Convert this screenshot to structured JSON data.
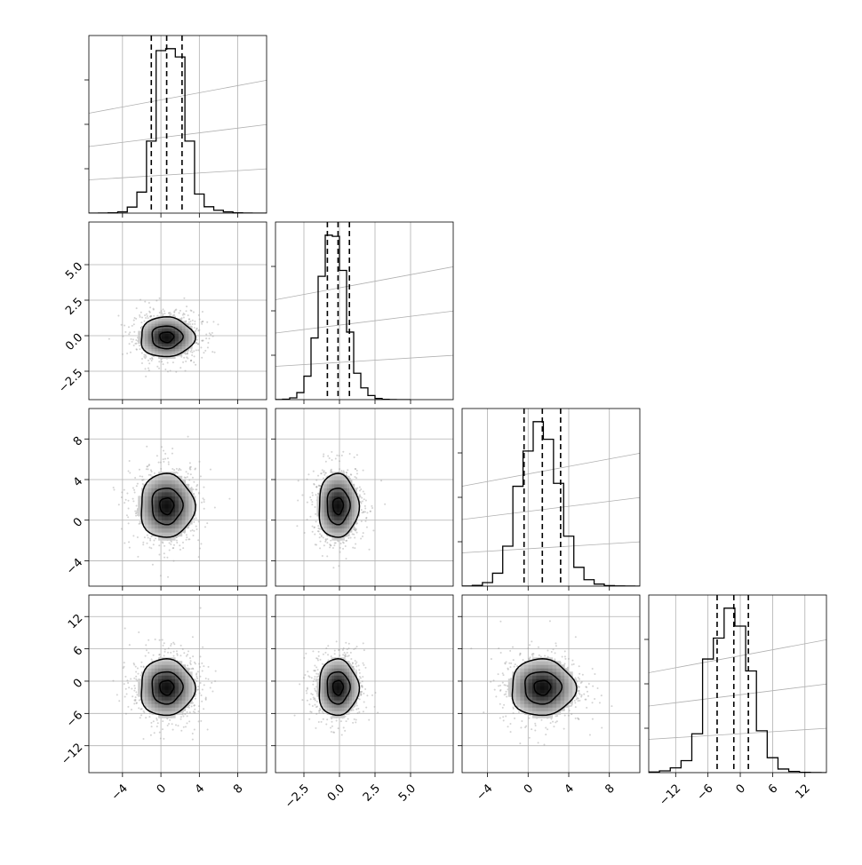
{
  "chart_data": {
    "type": "corner",
    "n_params": 4,
    "grid": true,
    "colors": {
      "hist": "#000000",
      "quantile": "#000000",
      "grid": "#b0b0b0",
      "points": "#9e9e9e",
      "contour": "#000000"
    },
    "params": [
      {
        "index": 0,
        "range": [
          -7.5,
          11
        ],
        "ticks": [
          -4,
          0,
          4,
          8
        ],
        "tick_labels": [
          "−4",
          "0",
          "4",
          "8"
        ],
        "median": 0.6,
        "quantiles": [
          -1.0,
          0.6,
          2.2
        ],
        "sigma": 1.6
      },
      {
        "index": 1,
        "range": [
          -4.5,
          8.0
        ],
        "ticks": [
          -2.5,
          0.0,
          2.5,
          5.0
        ],
        "tick_labels": [
          "−2.5",
          "0.0",
          "2.5",
          "5.0"
        ],
        "median": -0.1,
        "quantiles": [
          -0.85,
          -0.1,
          0.7
        ],
        "sigma": 0.8
      },
      {
        "index": 2,
        "range": [
          -6.5,
          11
        ],
        "ticks": [
          -4,
          0,
          4,
          8
        ],
        "tick_labels": [
          "−4",
          "0",
          "4",
          "8"
        ],
        "median": 1.4,
        "quantiles": [
          -0.4,
          1.4,
          3.2
        ],
        "sigma": 1.8
      },
      {
        "index": 3,
        "range": [
          -17,
          16
        ],
        "ticks": [
          -12,
          -6,
          0,
          6,
          12
        ],
        "tick_labels": [
          "−12",
          "−6",
          "0",
          "6",
          "12"
        ],
        "median": -1.2,
        "quantiles": [
          -4.3,
          -1.2,
          1.5
        ],
        "sigma": 3.0
      }
    ],
    "marginals": [
      {
        "param": 0,
        "bin_edges": [
          -7.5,
          -6.5,
          -5.5,
          -4.5,
          -3.5,
          -2.5,
          -1.5,
          -0.5,
          0.5,
          1.5,
          2.5,
          3.5,
          4.5,
          5.5,
          6.5,
          7.5,
          8.5,
          9.5,
          10.5,
          11.0
        ],
        "counts": [
          0,
          1,
          5,
          20,
          95,
          330,
          1130,
          2550,
          2580,
          2450,
          1130,
          300,
          100,
          45,
          20,
          5,
          1,
          0,
          0
        ]
      },
      {
        "param": 1,
        "bin_edges": [
          -4.5,
          -4.0,
          -3.5,
          -3.0,
          -2.5,
          -2.0,
          -1.5,
          -1.0,
          -0.5,
          0.0,
          0.5,
          1.0,
          1.5,
          2.0,
          2.5,
          3.0,
          3.5,
          4.0,
          4.5,
          5.0
        ],
        "counts": [
          2,
          8,
          30,
          120,
          400,
          1050,
          2100,
          2800,
          2780,
          2200,
          1150,
          450,
          200,
          70,
          20,
          5,
          1,
          0,
          0
        ]
      },
      {
        "param": 2,
        "bin_edges": [
          -6.5,
          -5.5,
          -4.5,
          -3.5,
          -2.5,
          -1.5,
          -0.5,
          0.5,
          1.5,
          2.5,
          3.5,
          4.5,
          5.5,
          6.5,
          7.5,
          8.5,
          9.5,
          10.5,
          11.0
        ],
        "counts": [
          2,
          12,
          60,
          220,
          680,
          1700,
          2300,
          2800,
          2500,
          1750,
          850,
          320,
          110,
          35,
          10,
          3,
          1,
          0
        ]
      },
      {
        "param": 3,
        "bin_edges": [
          -17,
          -15,
          -13,
          -11,
          -9,
          -7,
          -5,
          -3,
          -1,
          1,
          3,
          5,
          7,
          9,
          11,
          13,
          15,
          16
        ],
        "counts": [
          10,
          30,
          80,
          200,
          650,
          1900,
          2250,
          2750,
          2450,
          1700,
          700,
          250,
          60,
          20,
          5,
          1,
          0
        ]
      }
    ],
    "pairs": [
      {
        "x_param": 0,
        "y_param": 1,
        "center": [
          0.6,
          -0.1
        ],
        "level_radii_sigma": [
          0.45,
          1.0,
          1.75
        ]
      },
      {
        "x_param": 0,
        "y_param": 2,
        "center": [
          0.6,
          1.4
        ],
        "level_radii_sigma": [
          0.45,
          1.0,
          1.75
        ]
      },
      {
        "x_param": 1,
        "y_param": 2,
        "center": [
          -0.1,
          1.4
        ],
        "level_radii_sigma": [
          0.45,
          1.0,
          1.75
        ]
      },
      {
        "x_param": 0,
        "y_param": 3,
        "center": [
          0.6,
          -1.2
        ],
        "level_radii_sigma": [
          0.45,
          1.0,
          1.75
        ]
      },
      {
        "x_param": 1,
        "y_param": 3,
        "center": [
          -0.1,
          -1.2
        ],
        "level_radii_sigma": [
          0.45,
          1.0,
          1.75
        ]
      },
      {
        "x_param": 2,
        "y_param": 3,
        "center": [
          1.4,
          -1.2
        ],
        "level_radii_sigma": [
          0.45,
          1.0,
          1.75
        ]
      }
    ]
  }
}
